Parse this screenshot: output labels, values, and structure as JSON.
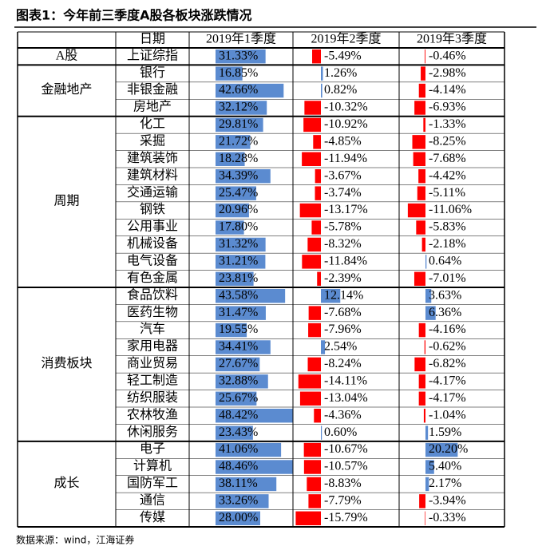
{
  "title": "图表1：今年前三季度A股各板块涨跌情况",
  "header": {
    "name": "日期",
    "columns": [
      "2019年1季度",
      "2019年2季度",
      "2019年3季度"
    ]
  },
  "groups": [
    {
      "name": "A股",
      "rows": [
        {
          "name": "上证综指",
          "values": [
            "31.33%",
            "-5.49%",
            "-0.46%"
          ]
        }
      ]
    },
    {
      "name": "金融地产",
      "rows": [
        {
          "name": "银行",
          "values": [
            "16.85%",
            "1.26%",
            "-2.98%"
          ]
        },
        {
          "name": "非银金融",
          "values": [
            "42.66%",
            "0.82%",
            "-4.14%"
          ]
        },
        {
          "name": "房地产",
          "values": [
            "32.12%",
            "-10.32%",
            "-6.93%"
          ]
        }
      ]
    },
    {
      "name": "周期",
      "rows": [
        {
          "name": "化工",
          "values": [
            "29.81%",
            "-10.92%",
            "-1.33%"
          ]
        },
        {
          "name": "采掘",
          "values": [
            "21.72%",
            "-4.85%",
            "-8.25%"
          ]
        },
        {
          "name": "建筑装饰",
          "values": [
            "18.28%",
            "-11.94%",
            "-7.68%"
          ]
        },
        {
          "name": "建筑材料",
          "values": [
            "34.39%",
            "-3.67%",
            "-4.42%"
          ]
        },
        {
          "name": "交通运输",
          "values": [
            "25.47%",
            "-3.74%",
            "-5.11%"
          ]
        },
        {
          "name": "钢铁",
          "values": [
            "20.96%",
            "-13.17%",
            "-11.06%"
          ]
        },
        {
          "name": "公用事业",
          "values": [
            "17.80%",
            "-5.78%",
            "-5.83%"
          ]
        },
        {
          "name": "机械设备",
          "values": [
            "31.32%",
            "-8.32%",
            "-2.18%"
          ]
        },
        {
          "name": "电气设备",
          "values": [
            "31.21%",
            "-11.84%",
            "0.64%"
          ]
        },
        {
          "name": "有色金属",
          "values": [
            "23.81%",
            "-2.39%",
            "-7.01%"
          ]
        }
      ]
    },
    {
      "name": "消费板块",
      "rows": [
        {
          "name": "食品饮料",
          "values": [
            "43.58%",
            "12.14%",
            "3.63%"
          ]
        },
        {
          "name": "医药生物",
          "values": [
            "31.47%",
            "-7.68%",
            "6.36%"
          ]
        },
        {
          "name": "汽车",
          "values": [
            "19.55%",
            "-7.96%",
            "-4.16%"
          ]
        },
        {
          "name": "家用电器",
          "values": [
            "34.41%",
            "2.54%",
            "-0.62%"
          ]
        },
        {
          "name": "商业贸易",
          "values": [
            "27.67%",
            "-8.24%",
            "-6.82%"
          ]
        },
        {
          "name": "轻工制造",
          "values": [
            "32.88%",
            "-14.11%",
            "-4.17%"
          ]
        },
        {
          "name": "纺织服装",
          "values": [
            "25.67%",
            "-13.04%",
            "-4.17%"
          ]
        },
        {
          "name": "农林牧渔",
          "values": [
            "48.42%",
            "-4.36%",
            "-1.04%"
          ]
        },
        {
          "name": "休闲服务",
          "values": [
            "23.43%",
            "0.60%",
            "1.59%"
          ]
        }
      ]
    },
    {
      "name": "成长",
      "rows": [
        {
          "name": "电子",
          "values": [
            "41.06%",
            "-10.67%",
            "20.20%"
          ]
        },
        {
          "name": "计算机",
          "values": [
            "48.46%",
            "-10.57%",
            "5.40%"
          ]
        },
        {
          "name": "国防军工",
          "values": [
            "38.11%",
            "-8.83%",
            "2.17%"
          ]
        },
        {
          "name": "通信",
          "values": [
            "33.26%",
            "-7.79%",
            "-3.94%"
          ]
        },
        {
          "name": "传媒",
          "values": [
            "28.00%",
            "-15.79%",
            "-0.33%"
          ]
        }
      ]
    }
  ],
  "source": "数据来源：wind，江海证券"
}
